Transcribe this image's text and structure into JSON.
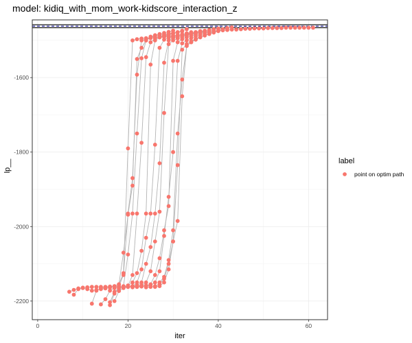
{
  "chart_data": {
    "type": "scatter",
    "title": "model: kidiq_with_mom_work-kidscore_interaction_z",
    "xlabel": "iter",
    "ylabel": "lp__",
    "xlim": [
      -1.2,
      64.2
    ],
    "ylim": [
      -2250,
      -1445
    ],
    "x_ticks": [
      0,
      20,
      40,
      60
    ],
    "y_ticks": [
      -1600,
      -1800,
      -2000,
      -2200
    ],
    "x_tick_labels": [
      "0",
      "20",
      "40",
      "60"
    ],
    "y_tick_labels": [
      "-1600",
      "-1800",
      "-2000",
      "-2200"
    ],
    "grid": true,
    "legend": {
      "title": "label",
      "position": "right",
      "entries": [
        {
          "label": "point on optim path",
          "color": "#f8766d"
        }
      ]
    },
    "reference_lines": [
      {
        "y": -1458,
        "style": "solid",
        "color": "#000000"
      },
      {
        "y": -1462,
        "style": "dashed",
        "color": "#00008b"
      },
      {
        "y": -1466,
        "style": "solid",
        "color": "#000000"
      }
    ],
    "point_color": "#f8766d",
    "path_color": "#b3b3b3",
    "series": [
      {
        "x": [
          7,
          8,
          9,
          10,
          11,
          12,
          13,
          14,
          15,
          16,
          17,
          18,
          19,
          20,
          21,
          22,
          23,
          24,
          25,
          26,
          27,
          28,
          29,
          30,
          31,
          32,
          33,
          34,
          35,
          36,
          37,
          38,
          39,
          40,
          41,
          42,
          43,
          44,
          45,
          46,
          47,
          48,
          49,
          50,
          51,
          52,
          53,
          54,
          55,
          56,
          57,
          58,
          59,
          60,
          61
        ],
        "y": [
          -2175,
          -2170,
          -2166,
          -2164,
          -2163,
          -2162,
          -2162,
          -2162,
          -2162,
          -2161,
          -2160,
          -2155,
          -2125,
          -1790,
          -1500,
          -1497,
          -1495,
          -1494,
          -1493,
          -1492,
          -1492,
          -1491,
          -1490,
          -1490,
          -1489,
          -1488,
          -1485,
          -1482,
          -1480,
          -1478,
          -1477,
          -1476,
          -1475,
          -1474,
          -1473,
          -1472,
          -1471,
          -1471,
          -1470,
          -1469,
          -1469,
          -1468,
          -1468,
          -1468,
          -1467,
          -1467,
          -1467,
          -1467,
          -1466,
          -1466,
          -1466,
          -1466,
          -1466,
          -1466,
          -1466
        ]
      },
      {
        "x": [
          8,
          9,
          10,
          11,
          12,
          13,
          14,
          15,
          16,
          17,
          18,
          19,
          20,
          21,
          22,
          23,
          24,
          25,
          26,
          27,
          28,
          29,
          30,
          31,
          32,
          33,
          34,
          35,
          36,
          37,
          38,
          39,
          40
        ],
        "y": [
          -2183,
          -2168,
          -2165,
          -2168,
          -2172,
          -2170,
          -2168,
          -2166,
          -2164,
          -2162,
          -2160,
          -2130,
          -1965,
          -1870,
          -1592,
          -1500,
          -1497,
          -1494,
          -1492,
          -1490,
          -1489,
          -1488,
          -1487,
          -1486,
          -1484,
          -1482,
          -1480,
          -1478,
          -1476,
          -1474,
          -1472,
          -1470,
          -1468
        ]
      },
      {
        "x": [
          12,
          13,
          14,
          15,
          16,
          17,
          18,
          19,
          20,
          21,
          22,
          23,
          24,
          25,
          26,
          27,
          28,
          29,
          30,
          31,
          32,
          33
        ],
        "y": [
          -2207,
          -2172,
          -2165,
          -2163,
          -2162,
          -2160,
          -2155,
          -2070,
          -1968,
          -1890,
          -1550,
          -1520,
          -1500,
          -1492,
          -1488,
          -1486,
          -1484,
          -1482,
          -1480,
          -1478,
          -1474,
          -1470
        ]
      },
      {
        "x": [
          14,
          15,
          16,
          17,
          18,
          19,
          20,
          21,
          22,
          23,
          24,
          25,
          26,
          27,
          28,
          29,
          30
        ],
        "y": [
          -2209,
          -2195,
          -2172,
          -2165,
          -2162,
          -2160,
          -2075,
          -1965,
          -1750,
          -1548,
          -1500,
          -1490,
          -1486,
          -1483,
          -1480,
          -1477,
          -1474
        ]
      },
      {
        "x": [
          16,
          17,
          18,
          19,
          20,
          21,
          22,
          23,
          24,
          25,
          26,
          27,
          28,
          29,
          30,
          31
        ],
        "y": [
          -2211,
          -2180,
          -2166,
          -2163,
          -2160,
          -2130,
          -1965,
          -1775,
          -1545,
          -1505,
          -1495,
          -1490,
          -1487,
          -1484,
          -1481,
          -1478
        ]
      },
      {
        "x": [
          16,
          17,
          18,
          19,
          20,
          21,
          22,
          23,
          24,
          25,
          26,
          27,
          28,
          29,
          30,
          31,
          32
        ],
        "y": [
          -2203,
          -2175,
          -2165,
          -2162,
          -2158,
          -2150,
          -2125,
          -2065,
          -1965,
          -1565,
          -1500,
          -1492,
          -1488,
          -1485,
          -1482,
          -1479,
          -1476
        ]
      },
      {
        "x": [
          17,
          18,
          19,
          20,
          21,
          22,
          23,
          24,
          25,
          26,
          27,
          28,
          29,
          30,
          31,
          32,
          33,
          34
        ],
        "y": [
          -2200,
          -2173,
          -2165,
          -2162,
          -2160,
          -2150,
          -2115,
          -2030,
          -1965,
          -1780,
          -1520,
          -1498,
          -1493,
          -1490,
          -1487,
          -1484,
          -1481,
          -1478
        ]
      },
      {
        "x": [
          18,
          19,
          20,
          21,
          22,
          23,
          24,
          25,
          26,
          27,
          28,
          29,
          30,
          31,
          32,
          33,
          34,
          35,
          36
        ],
        "y": [
          -2165,
          -2163,
          -2162,
          -2160,
          -2158,
          -2150,
          -2100,
          -2055,
          -1965,
          -1830,
          -1560,
          -1500,
          -1494,
          -1490,
          -1487,
          -1484,
          -1481,
          -1478,
          -1475
        ]
      },
      {
        "x": [
          19,
          20,
          21,
          22,
          23,
          24,
          25,
          26,
          27,
          28,
          29,
          30,
          31,
          32,
          33,
          34,
          35,
          36,
          37
        ],
        "y": [
          -2162,
          -2162,
          -2161,
          -2160,
          -2158,
          -2150,
          -2120,
          -2040,
          -1960,
          -1695,
          -1510,
          -1500,
          -1495,
          -1491,
          -1487,
          -1484,
          -1481,
          -1478,
          -1475
        ]
      },
      {
        "x": [
          21,
          22,
          23,
          24,
          25,
          26,
          27,
          28,
          29,
          30,
          31,
          32,
          33,
          34,
          35,
          36,
          37,
          38
        ],
        "y": [
          -2163,
          -2162,
          -2160,
          -2158,
          -2155,
          -2130,
          -2085,
          -2010,
          -1945,
          -1555,
          -1505,
          -1497,
          -1492,
          -1488,
          -1484,
          -1481,
          -1478,
          -1475
        ]
      },
      {
        "x": [
          22,
          23,
          24,
          25,
          26,
          27,
          28,
          29,
          30,
          31,
          32,
          33,
          34,
          35,
          36,
          37,
          38,
          39
        ],
        "y": [
          -2162,
          -2161,
          -2160,
          -2158,
          -2150,
          -2120,
          -2025,
          -1920,
          -1800,
          -1555,
          -1508,
          -1500,
          -1494,
          -1489,
          -1485,
          -1481,
          -1477,
          -1473
        ]
      },
      {
        "x": [
          24,
          25,
          26,
          27,
          28,
          29,
          30,
          31,
          32,
          33,
          34,
          35,
          36,
          37,
          38,
          39,
          40,
          41
        ],
        "y": [
          -2163,
          -2162,
          -2160,
          -2155,
          -2140,
          -2100,
          -2040,
          -1985,
          -1650,
          -1515,
          -1505,
          -1498,
          -1492,
          -1487,
          -1483,
          -1479,
          -1475,
          -1471
        ]
      },
      {
        "x": [
          26,
          27,
          28,
          29,
          30,
          31,
          32,
          33,
          34,
          35,
          36,
          37,
          38,
          39,
          40,
          41,
          42
        ],
        "y": [
          -2162,
          -2160,
          -2150,
          -2115,
          -2040,
          -1835,
          -1525,
          -1510,
          -1502,
          -1496,
          -1491,
          -1486,
          -1482,
          -1478,
          -1474,
          -1470,
          -1467
        ]
      },
      {
        "x": [
          27,
          28,
          29,
          30,
          31,
          32,
          33,
          34,
          35,
          36,
          37,
          38,
          39,
          40,
          41,
          42,
          43
        ],
        "y": [
          -2150,
          -2135,
          -2090,
          -2010,
          -1750,
          -1605,
          -1515,
          -1505,
          -1497,
          -1491,
          -1486,
          -1481,
          -1477,
          -1473,
          -1470,
          -1467,
          -1465
        ]
      }
    ]
  }
}
